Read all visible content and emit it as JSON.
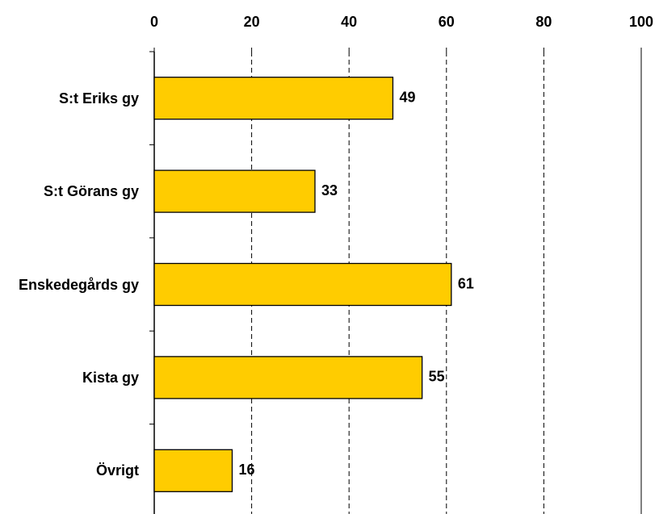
{
  "chart_data": {
    "type": "bar",
    "orientation": "horizontal",
    "categories": [
      "S:t Eriks gy",
      "S:t Görans gy",
      "Enskedegårds gy",
      "Kista gy",
      "Övrigt"
    ],
    "values": [
      49,
      33,
      61,
      55,
      16
    ],
    "color": "#ffcc00",
    "xlim": [
      0,
      100
    ],
    "xticks": [
      0,
      20,
      40,
      60,
      80,
      100
    ],
    "grid": true
  }
}
